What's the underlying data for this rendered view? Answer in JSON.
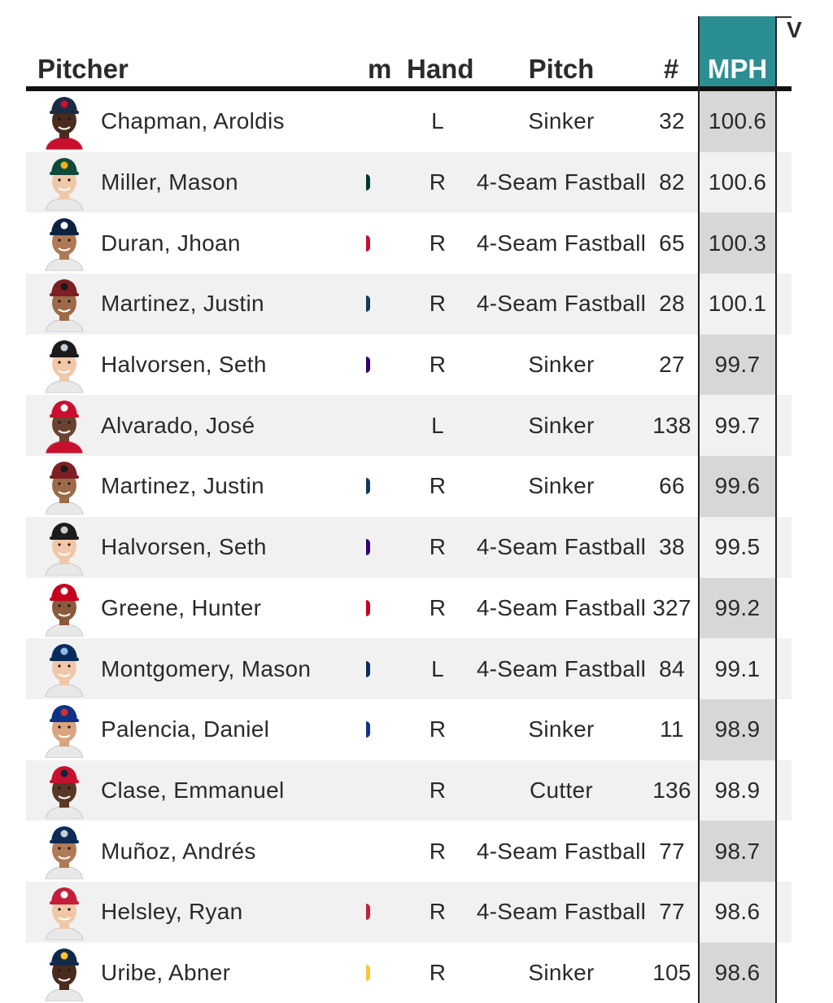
{
  "header": {
    "pitcher": "Pitcher",
    "team": "m",
    "hand": "Hand",
    "pitch": "Pitch",
    "count": "#",
    "mph": "MPH",
    "next": "V"
  },
  "rows": [
    {
      "name": "Chapman, Aroldis",
      "hand": "L",
      "pitch": "Sinker",
      "count": "32",
      "mph": "100.6",
      "team_color": "",
      "cap": "#1d2a44",
      "cap_mark": "#c8102e",
      "skin": "#4a2b1d",
      "jersey": "#c8102e"
    },
    {
      "name": "Miller, Mason",
      "hand": "R",
      "pitch": "4-Seam Fastball",
      "count": "82",
      "mph": "100.6",
      "team_color": "#003831",
      "cap": "#0f4a3a",
      "cap_mark": "#efb21e",
      "skin": "#f0c8a8",
      "jersey": "#e8e8e8"
    },
    {
      "name": "Duran, Jhoan",
      "hand": "R",
      "pitch": "4-Seam Fastball",
      "count": "65",
      "mph": "100.3",
      "team_color": "#c8102e",
      "cap": "#0c2340",
      "cap_mark": "#ffffff",
      "skin": "#b07a55",
      "jersey": "#e8e8e8"
    },
    {
      "name": "Martinez, Justin",
      "hand": "R",
      "pitch": "4-Seam Fastball",
      "count": "28",
      "mph": "100.1",
      "team_color": "#0f3a5c",
      "cap": "#7d1f24",
      "cap_mark": "#1b1b1b",
      "skin": "#9c6a48",
      "jersey": "#e8e8e8"
    },
    {
      "name": "Halvorsen, Seth",
      "hand": "R",
      "pitch": "Sinker",
      "count": "27",
      "mph": "99.7",
      "team_color": "#33006f",
      "cap": "#1b1b1b",
      "cap_mark": "#c4ced4",
      "skin": "#f0c8a8",
      "jersey": "#e8e8e8"
    },
    {
      "name": "Alvarado, José",
      "hand": "L",
      "pitch": "Sinker",
      "count": "138",
      "mph": "99.7",
      "team_color": "",
      "cap": "#c8102e",
      "cap_mark": "#ffffff",
      "skin": "#6a4330",
      "jersey": "#c8102e"
    },
    {
      "name": "Martinez, Justin",
      "hand": "R",
      "pitch": "Sinker",
      "count": "66",
      "mph": "99.6",
      "team_color": "#0f3a5c",
      "cap": "#7d1f24",
      "cap_mark": "#1b1b1b",
      "skin": "#9c6a48",
      "jersey": "#e8e8e8"
    },
    {
      "name": "Halvorsen, Seth",
      "hand": "R",
      "pitch": "4-Seam Fastball",
      "count": "38",
      "mph": "99.5",
      "team_color": "#33006f",
      "cap": "#1b1b1b",
      "cap_mark": "#c4ced4",
      "skin": "#f0c8a8",
      "jersey": "#e8e8e8"
    },
    {
      "name": "Greene, Hunter",
      "hand": "R",
      "pitch": "4-Seam Fastball",
      "count": "327",
      "mph": "99.2",
      "team_color": "#c6011f",
      "cap": "#c6011f",
      "cap_mark": "#ffffff",
      "skin": "#8a5a3c",
      "jersey": "#e8e8e8"
    },
    {
      "name": "Montgomery, Mason",
      "hand": "L",
      "pitch": "4-Seam Fastball",
      "count": "84",
      "mph": "99.1",
      "team_color": "#092c5c",
      "cap": "#092c5c",
      "cap_mark": "#8fbce6",
      "skin": "#f0c8a8",
      "jersey": "#e8e8e8"
    },
    {
      "name": "Palencia, Daniel",
      "hand": "R",
      "pitch": "Sinker",
      "count": "11",
      "mph": "98.9",
      "team_color": "#0e3386",
      "cap": "#0e3386",
      "cap_mark": "#cc3433",
      "skin": "#d9a47e",
      "jersey": "#e8e8e8"
    },
    {
      "name": "Clase, Emmanuel",
      "hand": "R",
      "pitch": "Cutter",
      "count": "136",
      "mph": "98.9",
      "team_color": "",
      "cap": "#c8102e",
      "cap_mark": "#0c2340",
      "skin": "#5a3826",
      "jersey": "#e8e8e8"
    },
    {
      "name": "Muñoz, Andrés",
      "hand": "R",
      "pitch": "4-Seam Fastball",
      "count": "77",
      "mph": "98.7",
      "team_color": "",
      "cap": "#0c2c56",
      "cap_mark": "#c4ced4",
      "skin": "#b07a55",
      "jersey": "#e8e8e8"
    },
    {
      "name": "Helsley, Ryan",
      "hand": "R",
      "pitch": "4-Seam Fastball",
      "count": "77",
      "mph": "98.6",
      "team_color": "#c41e3a",
      "cap": "#c41e3a",
      "cap_mark": "#ffffff",
      "skin": "#f0c8a8",
      "jersey": "#e8e8e8"
    },
    {
      "name": "Uribe, Abner",
      "hand": "R",
      "pitch": "Sinker",
      "count": "105",
      "mph": "98.6",
      "team_color": "#ffc52f",
      "cap": "#12284b",
      "cap_mark": "#ffc52f",
      "skin": "#4a2b1d",
      "jersey": "#e8e8e8"
    }
  ]
}
